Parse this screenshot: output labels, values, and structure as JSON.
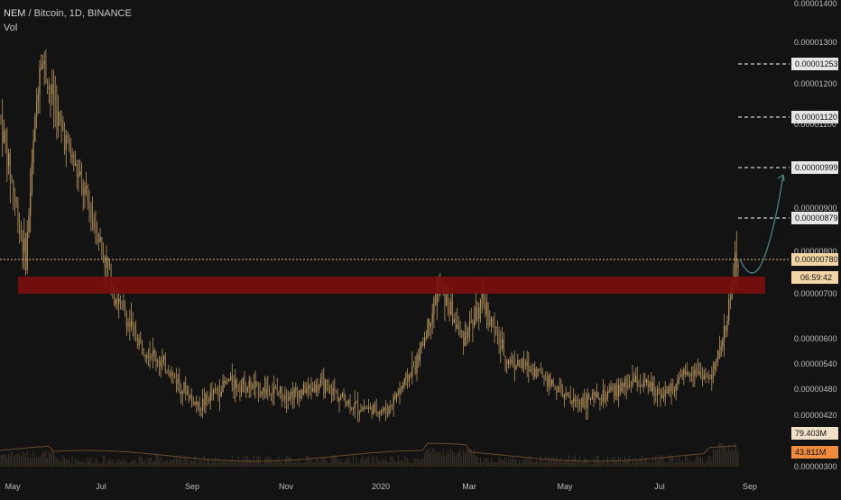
{
  "header": {
    "symbol": "NEM",
    "separator": "/",
    "pair": "Bitcoin, 1D, BINANCE",
    "indicator": "Vol"
  },
  "colors": {
    "background": "#131313",
    "candle": "#b79561",
    "zone": "#7a0f0f",
    "level_line": "#ffffff",
    "price_line": "#e8c07a",
    "projection_arrow": "#4f8a8a",
    "volume_line": "#6b4a2a",
    "tag_background": "#e6e6e6",
    "tag_text": "#111111",
    "volume_tag_background": "#f08a3c"
  },
  "chart_data": {
    "type": "candlestick",
    "title": "NEM / Bitcoin, 1D, BINANCE",
    "xlabel": "",
    "ylabel": "",
    "ylim": [
      3e-06,
      1.4e-05
    ],
    "y_ticks": [
      "0.00001400",
      "0.00001300",
      "0.00001253",
      "0.00001200",
      "0.00001120",
      "0.00001100",
      "0.00000999",
      "0.00000900",
      "0.00000879",
      "0.00000800",
      "0.00000780",
      "0.00000700",
      "0.00000600",
      "0.00000540",
      "0.00000480",
      "0.00000420",
      "0.00000300"
    ],
    "y_tick_values": [
      1.4e-05,
      1.3e-05,
      1.253e-05,
      1.2e-05,
      1.12e-05,
      1.1e-05,
      9.99e-06,
      9e-06,
      8.79e-06,
      8e-06,
      7.8e-06,
      7e-06,
      6e-06,
      5.4e-06,
      4.8e-06,
      4.2e-06,
      3e-06
    ],
    "x_labels": [
      "May",
      "Jul",
      "Sep",
      "Nov",
      "2020",
      "Mar",
      "May",
      "Jul",
      "Sep"
    ],
    "grid": false,
    "legend": "top-left",
    "monthly_close_path": [
      {
        "date": "2019-04-25",
        "close": 1.12e-05
      },
      {
        "date": "2019-05-10",
        "close": 7.8e-06
      },
      {
        "date": "2019-05-20",
        "close": 1.28e-05
      },
      {
        "date": "2019-05-31",
        "close": 1.13e-05
      },
      {
        "date": "2019-06-15",
        "close": 9.8e-06
      },
      {
        "date": "2019-06-30",
        "close": 8.3e-06
      },
      {
        "date": "2019-07-10",
        "close": 7e-06
      },
      {
        "date": "2019-07-25",
        "close": 6e-06
      },
      {
        "date": "2019-08-15",
        "close": 5.3e-06
      },
      {
        "date": "2019-09-05",
        "close": 4.4e-06
      },
      {
        "date": "2019-09-25",
        "close": 5e-06
      },
      {
        "date": "2019-10-15",
        "close": 4.8e-06
      },
      {
        "date": "2019-11-05",
        "close": 4.7e-06
      },
      {
        "date": "2019-11-25",
        "close": 4.9e-06
      },
      {
        "date": "2019-12-15",
        "close": 4.4e-06
      },
      {
        "date": "2020-01-05",
        "close": 4.3e-06
      },
      {
        "date": "2020-01-25",
        "close": 5.4e-06
      },
      {
        "date": "2020-02-10",
        "close": 7.2e-06
      },
      {
        "date": "2020-02-25",
        "close": 6e-06
      },
      {
        "date": "2020-03-10",
        "close": 6.8e-06
      },
      {
        "date": "2020-03-25",
        "close": 5.5e-06
      },
      {
        "date": "2020-04-15",
        "close": 5.2e-06
      },
      {
        "date": "2020-05-05",
        "close": 4.5e-06
      },
      {
        "date": "2020-05-25",
        "close": 4.6e-06
      },
      {
        "date": "2020-06-15",
        "close": 5e-06
      },
      {
        "date": "2020-07-05",
        "close": 4.7e-06
      },
      {
        "date": "2020-07-25",
        "close": 5.3e-06
      },
      {
        "date": "2020-08-05",
        "close": 5e-06
      },
      {
        "date": "2020-08-15",
        "close": 6.2e-06
      },
      {
        "date": "2020-08-22",
        "close": 7.8e-06
      }
    ],
    "resistance_zone": [
      7e-06,
      7.4e-06
    ],
    "target_levels": [
      1.253e-05,
      1.12e-05,
      9.99e-06,
      8.79e-06
    ],
    "current_price": 7.8e-06,
    "countdown": "06:59:42",
    "volume_values": [
      "79.403M",
      "43.811M"
    ]
  }
}
